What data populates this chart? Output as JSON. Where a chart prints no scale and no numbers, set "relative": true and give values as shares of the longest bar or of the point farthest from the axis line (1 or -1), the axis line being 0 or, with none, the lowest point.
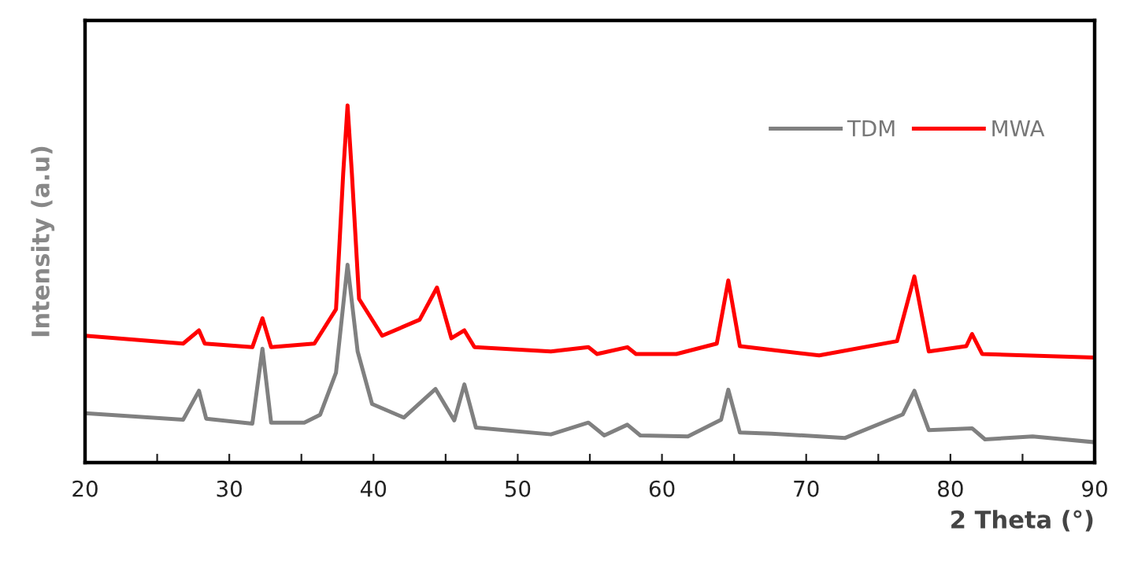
{
  "chart_data": {
    "type": "line",
    "relative": true,
    "xlabel": "2 Theta (°)",
    "ylabel": "Intensity (a.u)",
    "xlim": [
      20,
      90
    ],
    "xticks": [
      20,
      {
        "value": 25,
        "label": null
      },
      30,
      {
        "value": 35,
        "label": null
      },
      40,
      {
        "value": 45,
        "label": null
      },
      50,
      {
        "value": 55,
        "label": null
      },
      60,
      {
        "value": 65,
        "label": null
      },
      70,
      {
        "value": 75,
        "label": null
      },
      80,
      {
        "value": 85,
        "label": null
      },
      90
    ],
    "grid": false,
    "legend": "top right",
    "marker": "none",
    "line_style": "solid",
    "series": [
      {
        "name": "TDM",
        "color": "#808080",
        "x": [
          20,
          26.8,
          27.9,
          28.4,
          31.6,
          32.3,
          32.9,
          35.2,
          36.3,
          37.4,
          38.2,
          38.9,
          39.9,
          42.1,
          44.3,
          45.6,
          46.3,
          47.1,
          52.3,
          54.9,
          56.0,
          57.6,
          58.5,
          61.8,
          64.1,
          64.6,
          65.4,
          67.6,
          72.7,
          76.7,
          77.5,
          78.5,
          81.5,
          82.4,
          85.7,
          90
        ],
        "values": [
          0.138,
          0.12,
          0.201,
          0.123,
          0.109,
          0.319,
          0.112,
          0.112,
          0.134,
          0.252,
          0.554,
          0.311,
          0.164,
          0.126,
          0.206,
          0.118,
          0.219,
          0.098,
          0.079,
          0.112,
          0.076,
          0.106,
          0.076,
          0.073,
          0.12,
          0.204,
          0.084,
          0.081,
          0.069,
          0.135,
          0.201,
          0.091,
          0.096,
          0.065,
          0.073,
          0.057
        ]
      },
      {
        "name": "MWA",
        "color": "#ff0000",
        "x": [
          20,
          26.8,
          27.9,
          28.3,
          31.6,
          32.3,
          32.9,
          35.9,
          37.4,
          37.9,
          38.2,
          38.5,
          39.0,
          40.6,
          43.2,
          44.4,
          45.4,
          46.3,
          47.0,
          52.3,
          54.9,
          55.5,
          57.6,
          58.2,
          61.0,
          63.8,
          64.6,
          65.4,
          70.9,
          76.3,
          77.5,
          78.5,
          81.1,
          81.5,
          82.2,
          90
        ],
        "values": [
          0.355,
          0.333,
          0.37,
          0.333,
          0.323,
          0.404,
          0.323,
          0.333,
          0.429,
          0.81,
          1.0,
          0.81,
          0.458,
          0.355,
          0.4,
          0.49,
          0.348,
          0.37,
          0.323,
          0.311,
          0.323,
          0.304,
          0.323,
          0.304,
          0.304,
          0.333,
          0.51,
          0.326,
          0.3,
          0.34,
          0.521,
          0.311,
          0.326,
          0.36,
          0.304,
          0.294
        ]
      }
    ]
  }
}
